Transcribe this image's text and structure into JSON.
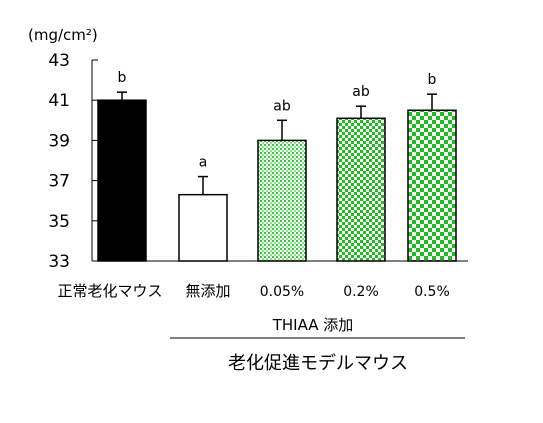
{
  "chart_data": {
    "type": "bar",
    "ylabel": "(mg/cm²)",
    "ylim": [
      33,
      43
    ],
    "yticks": [
      "43",
      "41",
      "39",
      "37",
      "35",
      "33"
    ],
    "grid": false,
    "categories": [
      "正常老化マウス",
      "無添加",
      "0.05%",
      "0.2%",
      "0.5%"
    ],
    "values": [
      41.0,
      36.3,
      39.0,
      40.1,
      40.5
    ],
    "error_upper": [
      41.4,
      37.2,
      40.0,
      40.7,
      41.3
    ],
    "significance": [
      "b",
      "a",
      "ab",
      "ab",
      "b"
    ],
    "bar_styles": [
      "solid-black",
      "white",
      "green-dots",
      "green-dense-check",
      "green-check"
    ],
    "colors": {
      "black": "#000000",
      "green_light": "#7ee07e",
      "green_mid": "#33cc33",
      "green_dark": "#22bb22"
    },
    "group_label": "THIAA 添加",
    "group_super_label": "老化促進モデルマウス"
  }
}
